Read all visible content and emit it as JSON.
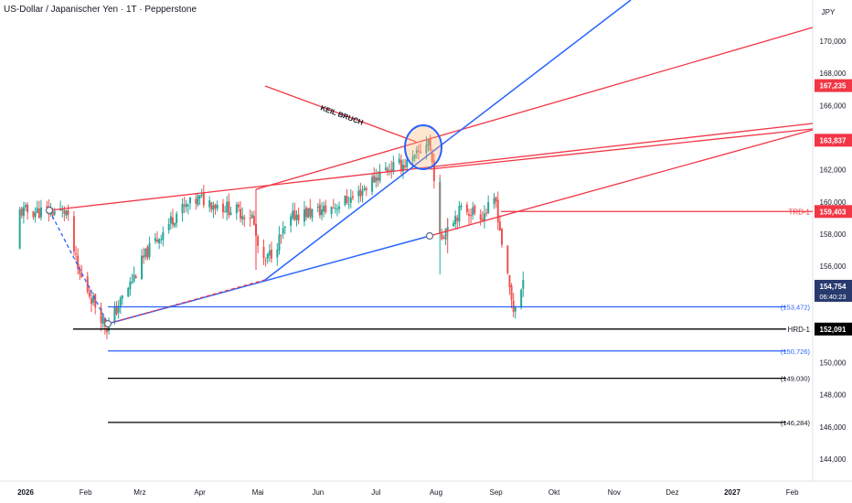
{
  "header": {
    "title": "US-Dollar / Japanischer Yen · 1T · Pepperstone"
  },
  "price_axis": {
    "currency": "JPY",
    "ticks": [
      "170,000",
      "168,000",
      "166,000",
      "164,000",
      "162,000",
      "160,000",
      "158,000",
      "156,000",
      "150,000",
      "148,000",
      "146,000",
      "144,000"
    ]
  },
  "time_axis": {
    "labels": [
      "2026",
      "Feb",
      "Mrz",
      "Apr",
      "Mai",
      "Jun",
      "Jul",
      "Aug",
      "Sep",
      "Okt",
      "Nov",
      "Dez",
      "2027",
      "Feb"
    ]
  },
  "annotations": {
    "wedge_break": "KEIL BRUCH"
  },
  "price_tags": {
    "resistance_1": "167,235",
    "resistance_2": "163,837",
    "trd_label": "TRD-1",
    "trd_value": "159,403",
    "last_price": "154,754",
    "countdown": "06:40:23",
    "hrd_label": "HRD-1",
    "hrd_value": "152,091"
  },
  "level_labels": [
    "(153,472)",
    "(150,726)",
    "(149,030)",
    "(146,284)"
  ],
  "colors": {
    "up": "#26a69a",
    "down": "#ef5350",
    "red_line": "#f23645",
    "blue_line": "#2962ff",
    "black": "#000000",
    "last_price_bg": "#283a6e"
  },
  "chart_data": {
    "type": "candlestick",
    "symbol": "USDJPY",
    "timeframe": "1D",
    "y_unit": "JPY",
    "ylim": [
      142.5,
      171.5
    ],
    "x_range": [
      "2025-12-18",
      "2027-02-20"
    ],
    "horizontal_levels": [
      {
        "label": "TRD-1",
        "value": 159.403,
        "color": "red"
      },
      {
        "label": "HRD-1",
        "value": 152.091,
        "color": "black"
      },
      {
        "label": "(153,472)",
        "value": 153.472,
        "color": "blue"
      },
      {
        "label": "(150,726)",
        "value": 150.726,
        "color": "blue"
      },
      {
        "label": "(149,030)",
        "value": 149.03,
        "color": "black"
      },
      {
        "label": "(146,284)",
        "value": 146.284,
        "color": "black"
      }
    ],
    "price_tags": [
      167.235,
      163.837,
      159.403,
      154.754,
      152.091
    ],
    "anchor_points": [
      {
        "date": "2026-01-22",
        "close": 159.4
      },
      {
        "date": "2026-01-28",
        "close": 155.7
      },
      {
        "date": "2026-02-12",
        "close": 152.2
      },
      {
        "date": "2026-03-05",
        "close": 156.9
      },
      {
        "date": "2026-03-20",
        "close": 159.3
      },
      {
        "date": "2026-04-01",
        "close": 160.2
      },
      {
        "date": "2026-04-28",
        "close": 159.1
      },
      {
        "date": "2026-05-01",
        "close": 157.2
      },
      {
        "date": "2026-05-04",
        "close": 156.1
      },
      {
        "date": "2026-05-20",
        "close": 159.2
      },
      {
        "date": "2026-06-05",
        "close": 159.5
      },
      {
        "date": "2026-06-20",
        "close": 160.3
      },
      {
        "date": "2026-07-05",
        "close": 162.0
      },
      {
        "date": "2026-07-20",
        "close": 162.5
      },
      {
        "date": "2026-07-28",
        "close": 163.9
      },
      {
        "date": "2026-07-31",
        "close": 161.7
      },
      {
        "date": "2026-08-03",
        "close": 157.6
      },
      {
        "date": "2026-08-07",
        "close": 158.7
      },
      {
        "date": "2026-08-15",
        "close": 159.6
      },
      {
        "date": "2026-08-25",
        "close": 159.2
      },
      {
        "date": "2026-09-01",
        "close": 160.0
      },
      {
        "date": "2026-09-03",
        "close": 158.3
      },
      {
        "date": "2026-09-06",
        "close": 155.8
      },
      {
        "date": "2026-09-10",
        "close": 153.3
      },
      {
        "date": "2026-09-15",
        "close": 154.75
      }
    ]
  }
}
